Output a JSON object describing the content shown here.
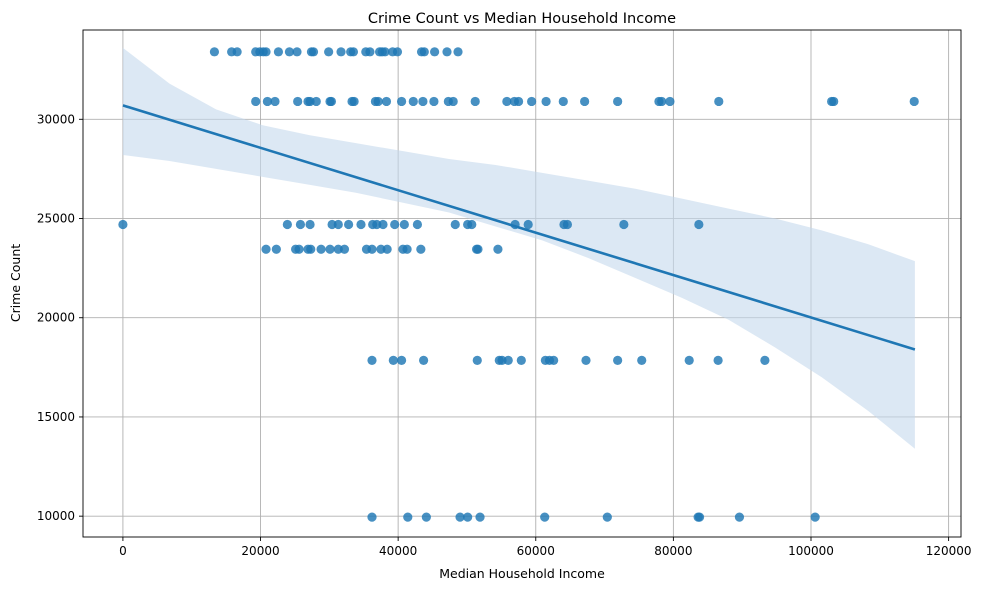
{
  "chart_data": {
    "type": "scatter",
    "title": "Crime Count vs Median Household Income",
    "xlabel": "Median Household Income",
    "ylabel": "Crime Count",
    "xlim": [
      -5800,
      121800
    ],
    "ylim": [
      8950,
      34500
    ],
    "xticks": [
      0,
      20000,
      40000,
      60000,
      80000,
      100000,
      120000
    ],
    "yticks": [
      10000,
      15000,
      20000,
      25000,
      30000
    ],
    "xtick_labels": [
      "0",
      "20000",
      "40000",
      "60000",
      "80000",
      "100000",
      "120000"
    ],
    "ytick_labels": [
      "10000",
      "15000",
      "20000",
      "25000",
      "30000"
    ],
    "grid": true,
    "colors": {
      "points": "#1f77b4",
      "line": "#1f77b4",
      "band": "#c5d9ed"
    },
    "regression": {
      "x": [
        0,
        115100
      ],
      "y": [
        30700,
        18400
      ],
      "ci_upper": [
        33600,
        31800,
        30500,
        29700,
        29200,
        28800,
        28400,
        28000,
        27700,
        27300,
        26900,
        26500,
        26000,
        25500,
        25000,
        24400,
        23700,
        22850
      ],
      "ci_lower": [
        28200,
        27900,
        27500,
        27100,
        26700,
        26300,
        25800,
        25300,
        24600,
        23900,
        23000,
        22000,
        21000,
        19900,
        18500,
        17000,
        15300,
        13400
      ],
      "ci_x": [
        0,
        6771,
        13541,
        20312,
        27082,
        33853,
        40624,
        47394,
        54165,
        60935,
        67706,
        74476,
        81247,
        88018,
        94788,
        101559,
        108329,
        115100
      ]
    },
    "points": [
      [
        13300,
        33400
      ],
      [
        15800,
        33400
      ],
      [
        16600,
        33400
      ],
      [
        19300,
        33400
      ],
      [
        19900,
        33400
      ],
      [
        20400,
        33400
      ],
      [
        20800,
        33400
      ],
      [
        22600,
        33400
      ],
      [
        24200,
        33400
      ],
      [
        25300,
        33400
      ],
      [
        27400,
        33400
      ],
      [
        27700,
        33400
      ],
      [
        29900,
        33400
      ],
      [
        31700,
        33400
      ],
      [
        33100,
        33400
      ],
      [
        33500,
        33400
      ],
      [
        35300,
        33400
      ],
      [
        35900,
        33400
      ],
      [
        37300,
        33400
      ],
      [
        37700,
        33400
      ],
      [
        38100,
        33400
      ],
      [
        39200,
        33400
      ],
      [
        39900,
        33400
      ],
      [
        43400,
        33400
      ],
      [
        43800,
        33400
      ],
      [
        45300,
        33400
      ],
      [
        47100,
        33400
      ],
      [
        48700,
        33400
      ],
      [
        19300,
        30900
      ],
      [
        21000,
        30900
      ],
      [
        22100,
        30900
      ],
      [
        25400,
        30900
      ],
      [
        26900,
        30900
      ],
      [
        27200,
        30900
      ],
      [
        28100,
        30900
      ],
      [
        30100,
        30900
      ],
      [
        30300,
        30900
      ],
      [
        33300,
        30900
      ],
      [
        33600,
        30900
      ],
      [
        36700,
        30900
      ],
      [
        37100,
        30900
      ],
      [
        38300,
        30900
      ],
      [
        40500,
        30900
      ],
      [
        42200,
        30900
      ],
      [
        43600,
        30900
      ],
      [
        45200,
        30900
      ],
      [
        47300,
        30900
      ],
      [
        48000,
        30900
      ],
      [
        51200,
        30900
      ],
      [
        55800,
        30900
      ],
      [
        56900,
        30900
      ],
      [
        57500,
        30900
      ],
      [
        59400,
        30900
      ],
      [
        61500,
        30900
      ],
      [
        64000,
        30900
      ],
      [
        67100,
        30900
      ],
      [
        71900,
        30900
      ],
      [
        77900,
        30900
      ],
      [
        78300,
        30900
      ],
      [
        79500,
        30900
      ],
      [
        86600,
        30900
      ],
      [
        103000,
        30900
      ],
      [
        103300,
        30900
      ],
      [
        115000,
        30900
      ],
      [
        0,
        24700
      ],
      [
        23900,
        24700
      ],
      [
        25800,
        24700
      ],
      [
        27200,
        24700
      ],
      [
        30400,
        24700
      ],
      [
        31300,
        24700
      ],
      [
        32800,
        24700
      ],
      [
        34600,
        24700
      ],
      [
        36300,
        24700
      ],
      [
        36900,
        24700
      ],
      [
        37800,
        24700
      ],
      [
        39500,
        24700
      ],
      [
        40900,
        24700
      ],
      [
        42800,
        24700
      ],
      [
        48300,
        24700
      ],
      [
        50100,
        24700
      ],
      [
        50700,
        24700
      ],
      [
        57000,
        24700
      ],
      [
        58900,
        24700
      ],
      [
        64100,
        24700
      ],
      [
        64600,
        24700
      ],
      [
        72800,
        24700
      ],
      [
        83700,
        24700
      ],
      [
        20800,
        23450
      ],
      [
        22300,
        23450
      ],
      [
        25100,
        23450
      ],
      [
        25600,
        23450
      ],
      [
        26900,
        23450
      ],
      [
        27300,
        23450
      ],
      [
        28800,
        23450
      ],
      [
        30100,
        23450
      ],
      [
        31300,
        23450
      ],
      [
        32200,
        23450
      ],
      [
        35400,
        23450
      ],
      [
        36200,
        23450
      ],
      [
        37500,
        23450
      ],
      [
        38400,
        23450
      ],
      [
        40700,
        23450
      ],
      [
        41300,
        23450
      ],
      [
        43300,
        23450
      ],
      [
        51400,
        23450
      ],
      [
        51600,
        23450
      ],
      [
        54500,
        23450
      ],
      [
        36200,
        17850
      ],
      [
        39300,
        17850
      ],
      [
        40500,
        17850
      ],
      [
        43700,
        17850
      ],
      [
        51500,
        17850
      ],
      [
        54700,
        17850
      ],
      [
        55100,
        17850
      ],
      [
        56000,
        17850
      ],
      [
        57900,
        17850
      ],
      [
        61400,
        17850
      ],
      [
        62000,
        17850
      ],
      [
        62600,
        17850
      ],
      [
        67300,
        17850
      ],
      [
        71900,
        17850
      ],
      [
        75400,
        17850
      ],
      [
        82300,
        17850
      ],
      [
        86500,
        17850
      ],
      [
        93300,
        17850
      ],
      [
        36200,
        9950
      ],
      [
        41400,
        9950
      ],
      [
        44100,
        9950
      ],
      [
        49000,
        9950
      ],
      [
        50100,
        9950
      ],
      [
        51900,
        9950
      ],
      [
        61300,
        9950
      ],
      [
        70400,
        9950
      ],
      [
        83600,
        9950
      ],
      [
        83800,
        9950
      ],
      [
        89600,
        9950
      ],
      [
        100600,
        9950
      ]
    ]
  }
}
